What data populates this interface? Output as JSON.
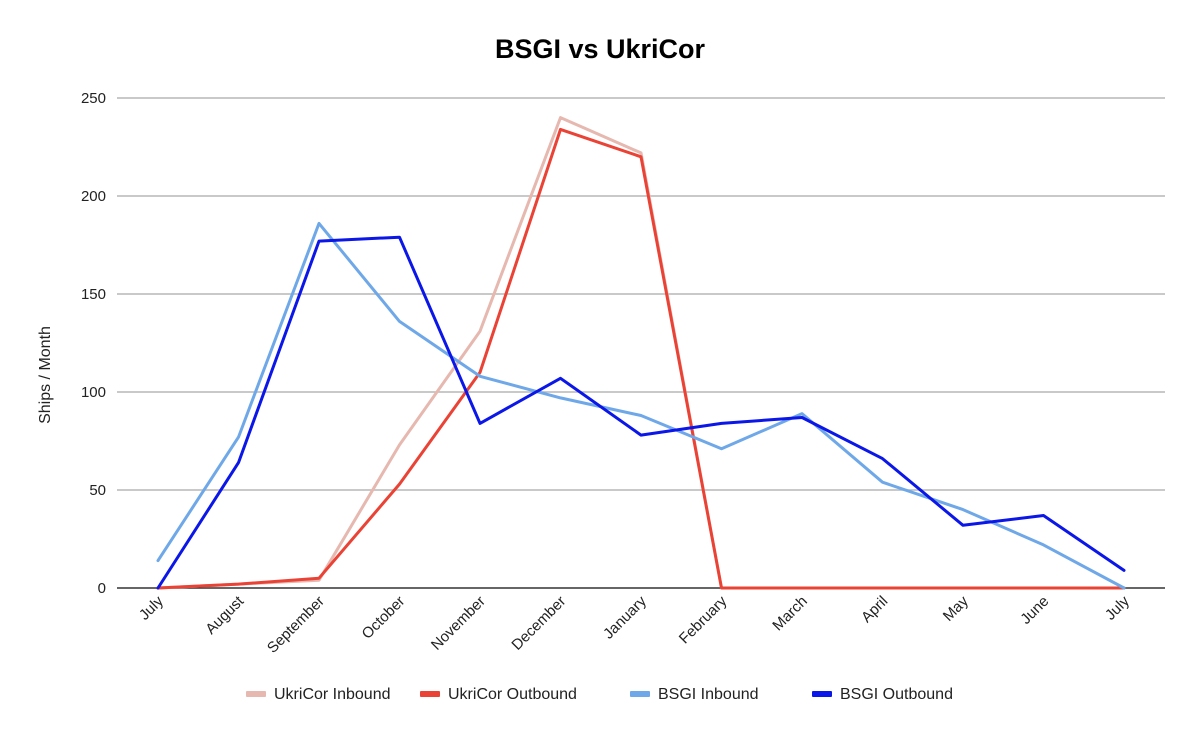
{
  "chart_data": {
    "type": "line",
    "title": "BSGI vs UkriCor",
    "xlabel": "",
    "ylabel": "Ships / Month",
    "ylim": [
      0,
      250
    ],
    "yticks": [
      0,
      50,
      100,
      150,
      200,
      250
    ],
    "grid": true,
    "legend_position": "bottom",
    "categories": [
      "July",
      "August",
      "September",
      "October",
      "November",
      "December",
      "January",
      "February",
      "March",
      "April",
      "May",
      "June",
      "July"
    ],
    "series": [
      {
        "name": "UkriCor Inbound",
        "color": "#e6b8af",
        "values": [
          0,
          2,
          4,
          73,
          131,
          240,
          222,
          0,
          0,
          0,
          0,
          0,
          0
        ]
      },
      {
        "name": "UkriCor Outbound",
        "color": "#ea4335",
        "values": [
          0,
          2,
          5,
          53,
          110,
          234,
          220,
          0,
          0,
          0,
          0,
          0,
          0
        ]
      },
      {
        "name": "BSGI Inbound",
        "color": "#6fa8e8",
        "values": [
          14,
          77,
          186,
          136,
          108,
          97,
          88,
          71,
          89,
          54,
          40,
          22,
          0
        ]
      },
      {
        "name": "BSGI Outbound",
        "color": "#0b16e8",
        "values": [
          0,
          64,
          177,
          179,
          84,
          107,
          78,
          84,
          87,
          66,
          32,
          37,
          9
        ]
      }
    ]
  }
}
